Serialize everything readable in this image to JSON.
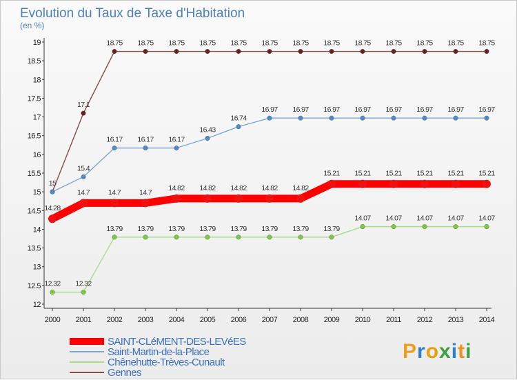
{
  "chart_data": {
    "type": "line",
    "title": "Evolution du Taux de Taxe d'Habitation",
    "subtitle": "(en %)",
    "xlabel": "",
    "ylabel": "",
    "ylim": [
      12,
      19
    ],
    "yticks": [
      12,
      12.5,
      13,
      13.5,
      14,
      14.5,
      15,
      15.5,
      16,
      16.5,
      17,
      17.5,
      18,
      18.5,
      19
    ],
    "categories": [
      "2000",
      "2001",
      "2002",
      "2003",
      "2004",
      "2005",
      "2006",
      "2007",
      "2008",
      "2009",
      "2010",
      "2011",
      "2012",
      "2013",
      "2014"
    ],
    "grid": false,
    "legend": "bottom-left",
    "series": [
      {
        "name": "SAINT-CLéMENT-DES-LEVéES",
        "color": "#ff0000",
        "marker": "#ee1111",
        "thick": true,
        "values": [
          14.28,
          14.7,
          14.7,
          14.7,
          14.82,
          14.82,
          14.82,
          14.82,
          14.82,
          15.21,
          15.21,
          15.21,
          15.21,
          15.21,
          15.21
        ],
        "labels": [
          "14.28",
          "14.7",
          "14.7",
          "14.7",
          "14.82",
          "14.82",
          "14.82",
          "14.82",
          "14.82",
          "15.21",
          "15.21",
          "15.21",
          "15.21",
          "15.21",
          "15.21"
        ]
      },
      {
        "name": "Saint-Martin-de-la-Place",
        "color": "#7aa6d6",
        "marker": "#4f8ccc",
        "thick": false,
        "values": [
          15,
          15.4,
          16.17,
          16.17,
          16.17,
          16.43,
          16.74,
          16.97,
          16.97,
          16.97,
          16.97,
          16.97,
          16.97,
          16.97,
          16.97
        ],
        "labels": [
          "",
          "15.4",
          "16.17",
          "16.17",
          "16.17",
          "16.43",
          "16.74",
          "16.97",
          "16.97",
          "16.97",
          "16.97",
          "16.97",
          "16.97",
          "16.97",
          "16.97"
        ]
      },
      {
        "name": "Chênehutte-Trèves-Cunault",
        "color": "#a8dc88",
        "marker": "#7ccb3c",
        "thick": false,
        "values": [
          12.32,
          12.32,
          13.79,
          13.79,
          13.79,
          13.79,
          13.79,
          13.79,
          13.79,
          13.79,
          14.07,
          14.07,
          14.07,
          14.07,
          14.07
        ],
        "labels": [
          "12.32",
          "12.32",
          "13.79",
          "13.79",
          "13.79",
          "13.79",
          "13.79",
          "13.79",
          "13.79",
          "13.79",
          "14.07",
          "14.07",
          "14.07",
          "14.07",
          "14.07"
        ]
      },
      {
        "name": "Gennes",
        "color": "#8a4a4a",
        "marker": "#6a1f1f",
        "thick": false,
        "values": [
          15,
          17.1,
          18.75,
          18.75,
          18.75,
          18.75,
          18.75,
          18.75,
          18.75,
          18.75,
          18.75,
          18.75,
          18.75,
          18.75,
          18.75
        ],
        "labels": [
          "15",
          "17.1",
          "18.75",
          "18.75",
          "18.75",
          "18.75",
          "18.75",
          "18.75",
          "18.75",
          "18.75",
          "18.75",
          "18.75",
          "18.75",
          "18.75",
          "18.75"
        ]
      }
    ]
  },
  "logo": {
    "letters": [
      "P",
      "r",
      "o",
      "x",
      "i",
      "t",
      "i"
    ],
    "colors": [
      "#f0a020",
      "#2a7fd4",
      "#e8a010",
      "#3aa040",
      "#2a7fd4",
      "#f09020",
      "#3aa040"
    ]
  }
}
